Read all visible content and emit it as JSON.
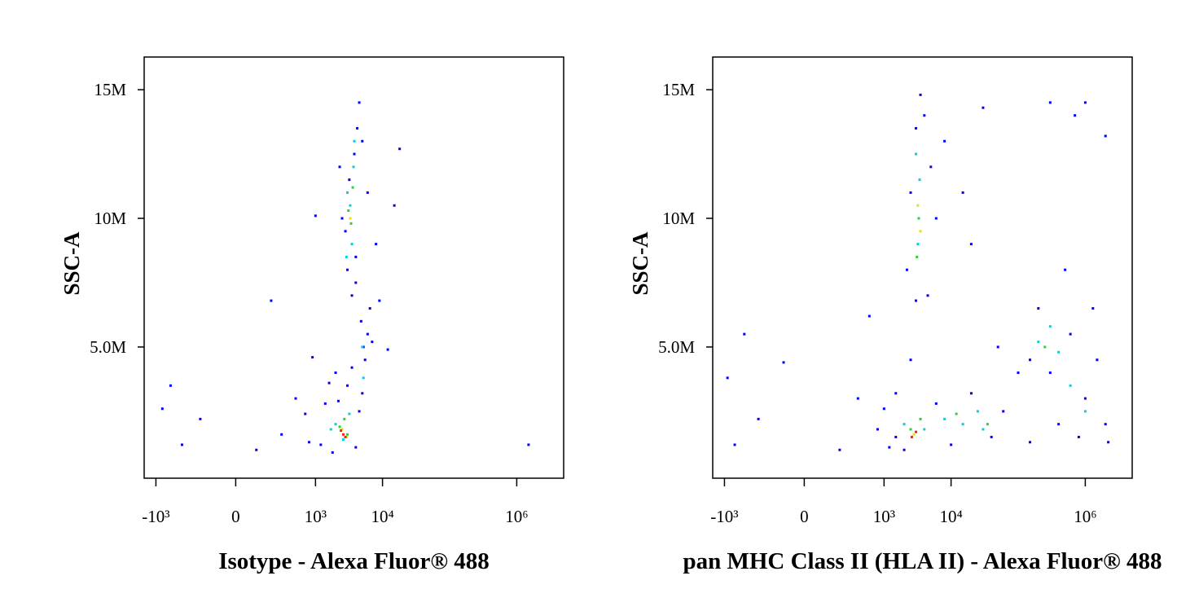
{
  "chart_data": [
    {
      "type": "scatter",
      "xlabel": "Isotype - Alexa Fluor® 488",
      "ylabel": "SSC-A",
      "xscale": "asinh",
      "xlim": [
        -1500,
        5000000
      ],
      "ylim": [
        -100000,
        16270000
      ],
      "xticks": [
        {
          "value": -1000,
          "label": "-10³"
        },
        0,
        {
          "value": 1000,
          "label": "10³"
        },
        {
          "value": 10000,
          "label": "10⁴"
        },
        {
          "value": 1000000,
          "label": "10⁶"
        }
      ],
      "yticks": [
        {
          "value": 5000000,
          "label": "5.0M"
        },
        {
          "value": 10000000,
          "label": "10M"
        },
        {
          "value": 15000000,
          "label": "15M"
        }
      ],
      "series": [
        {
          "color": "#0000ff",
          "x": [
            -800,
            -600,
            -400,
            -200,
            100,
            300,
            500,
            700,
            800,
            900,
            200,
            1200,
            1400,
            1600,
            1800,
            2000,
            2200,
            3000,
            3500,
            4000,
            4500,
            5000,
            5500,
            6000,
            6500,
            4800,
            5200,
            7000,
            4000,
            3000,
            2800,
            2500,
            3200,
            3800,
            4200,
            4500,
            5000,
            6000,
            2300,
            3500,
            4000,
            9000,
            12000,
            15000,
            18000,
            8000,
            1500000,
            1000
          ],
          "y": [
            2600000,
            3500000,
            1200000,
            2200000,
            1000000,
            1600000,
            3000000,
            2400000,
            1300000,
            4600000,
            6800000,
            1200000,
            2800000,
            3600000,
            900000,
            4000000,
            2900000,
            3500000,
            4200000,
            1100000,
            2500000,
            3200000,
            4500000,
            5500000,
            6500000,
            6000000,
            5000000,
            5200000,
            7500000,
            8000000,
            9500000,
            10000000,
            11500000,
            12500000,
            13500000,
            14500000,
            13000000,
            11000000,
            12000000,
            7000000,
            8500000,
            6800000,
            4900000,
            10500000,
            12700000,
            9000000,
            1200000,
            10100000
          ]
        },
        {
          "color": "#00d0e0",
          "x": [
            2000,
            2600,
            3200,
            1700,
            3500,
            3300,
            3700,
            3000,
            5000,
            5200,
            3800,
            2900
          ],
          "y": [
            2000000,
            1400000,
            2400000,
            1800000,
            9000000,
            10500000,
            12000000,
            11000000,
            5000000,
            3800000,
            13000000,
            8500000
          ]
        },
        {
          "color": "#30d030",
          "x": [
            2300,
            3000,
            2700,
            3400,
            3600,
            3100
          ],
          "y": [
            1900000,
            1600000,
            2200000,
            9800000,
            11200000,
            10300000
          ]
        },
        {
          "color": "#e8e000",
          "x": [
            2500,
            2900,
            3300
          ],
          "y": [
            1800000,
            1500000,
            10000000
          ]
        },
        {
          "color": "#ff2000",
          "x": [
            2600,
            2400,
            2800
          ],
          "y": [
            1600000,
            1750000,
            1500000
          ]
        }
      ]
    },
    {
      "type": "scatter",
      "xlabel": "pan MHC Class II (HLA II) - Alexa Fluor® 488",
      "ylabel": "SSC-A",
      "xscale": "asinh",
      "xlim": [
        -1500,
        5000000
      ],
      "ylim": [
        -100000,
        16270000
      ],
      "xticks": [
        {
          "value": -1000,
          "label": "-10³"
        },
        0,
        {
          "value": 1000,
          "label": "10³"
        },
        {
          "value": 10000,
          "label": "10⁴"
        },
        {
          "value": 1000000,
          "label": "10⁶"
        }
      ],
      "yticks": [
        {
          "value": 5000000,
          "label": "5.0M"
        },
        {
          "value": 10000000,
          "label": "10M"
        },
        {
          "value": 15000000,
          "label": "15M"
        }
      ],
      "series": [
        {
          "color": "#0000ff",
          "x": [
            -900,
            -700,
            -500,
            -300,
            -100,
            200,
            400,
            600,
            800,
            1000,
            1200,
            1500,
            2500,
            2200,
            2500,
            3000,
            3500,
            4000,
            5000,
            6000,
            4500,
            3000,
            8000,
            15000,
            20000,
            30000,
            6000,
            10000,
            20000,
            40000,
            60000,
            100000,
            150000,
            200000,
            300000,
            400000,
            600000,
            800000,
            1000000,
            1500000,
            2000000,
            2200000,
            1300000,
            500000,
            1000000,
            2000000,
            300000,
            150000,
            700000,
            50000,
            1500,
            2000
          ],
          "y": [
            3800000,
            1200000,
            5500000,
            2200000,
            4400000,
            1000000,
            3000000,
            6200000,
            1800000,
            2600000,
            1100000,
            3200000,
            4500000,
            8000000,
            11000000,
            13500000,
            14800000,
            14000000,
            12000000,
            10000000,
            7000000,
            6800000,
            13000000,
            11000000,
            9000000,
            14300000,
            2800000,
            1200000,
            3200000,
            1500000,
            2500000,
            4000000,
            1300000,
            6500000,
            4000000,
            2000000,
            5500000,
            1500000,
            3000000,
            4500000,
            2000000,
            1300000,
            6500000,
            8000000,
            14500000,
            13200000,
            14500000,
            4500000,
            14000000,
            5000000,
            1500000,
            1000000
          ]
        },
        {
          "color": "#00d0e0",
          "x": [
            2000,
            4000,
            8000,
            15000,
            25000,
            3200,
            3400,
            3000,
            200000,
            300000,
            400000,
            600000,
            1000000,
            30000
          ],
          "y": [
            2000000,
            1800000,
            2200000,
            2000000,
            2500000,
            9000000,
            11500000,
            12500000,
            5200000,
            5800000,
            4800000,
            3500000,
            2500000,
            1800000
          ]
        },
        {
          "color": "#30d030",
          "x": [
            2500,
            3500,
            12000,
            3300,
            3100,
            250000,
            35000
          ],
          "y": [
            1800000,
            2200000,
            2400000,
            10000000,
            8500000,
            5000000,
            2000000
          ]
        },
        {
          "color": "#e8e000",
          "x": [
            2800,
            3500,
            3200
          ],
          "y": [
            1600000,
            9500000,
            10500000
          ]
        },
        {
          "color": "#ff2000",
          "x": [
            2600,
            3000
          ],
          "y": [
            1500000,
            1700000
          ]
        }
      ]
    }
  ]
}
